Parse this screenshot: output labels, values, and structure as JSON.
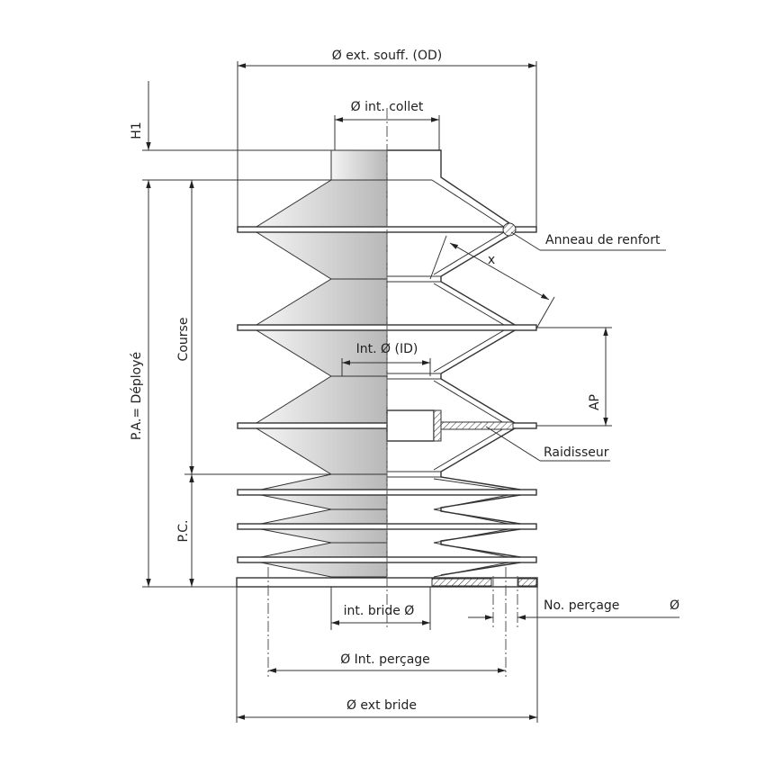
{
  "dimensions": {
    "outer_diameter": "Ø ext. souff. (OD)",
    "h1": "H1",
    "collar_inner_diameter": "Ø int. collet",
    "reinforcing_ring": "Anneau de renfort",
    "x": "x",
    "inner_diameter": "Int. Ø (ID)",
    "ap": "AP",
    "stroke": "Course",
    "extended_length": "P.A.= Déployé",
    "stiffener": "Raidisseur",
    "compressed_length": "P.C.",
    "flange_inner_diameter": "int. bride Ø",
    "hole_count": "No. perçage",
    "hole_diameter": "Ø",
    "hole_circle_diameter": "Ø Int. perçage",
    "flange_outer_diameter": "Ø ext bride"
  }
}
